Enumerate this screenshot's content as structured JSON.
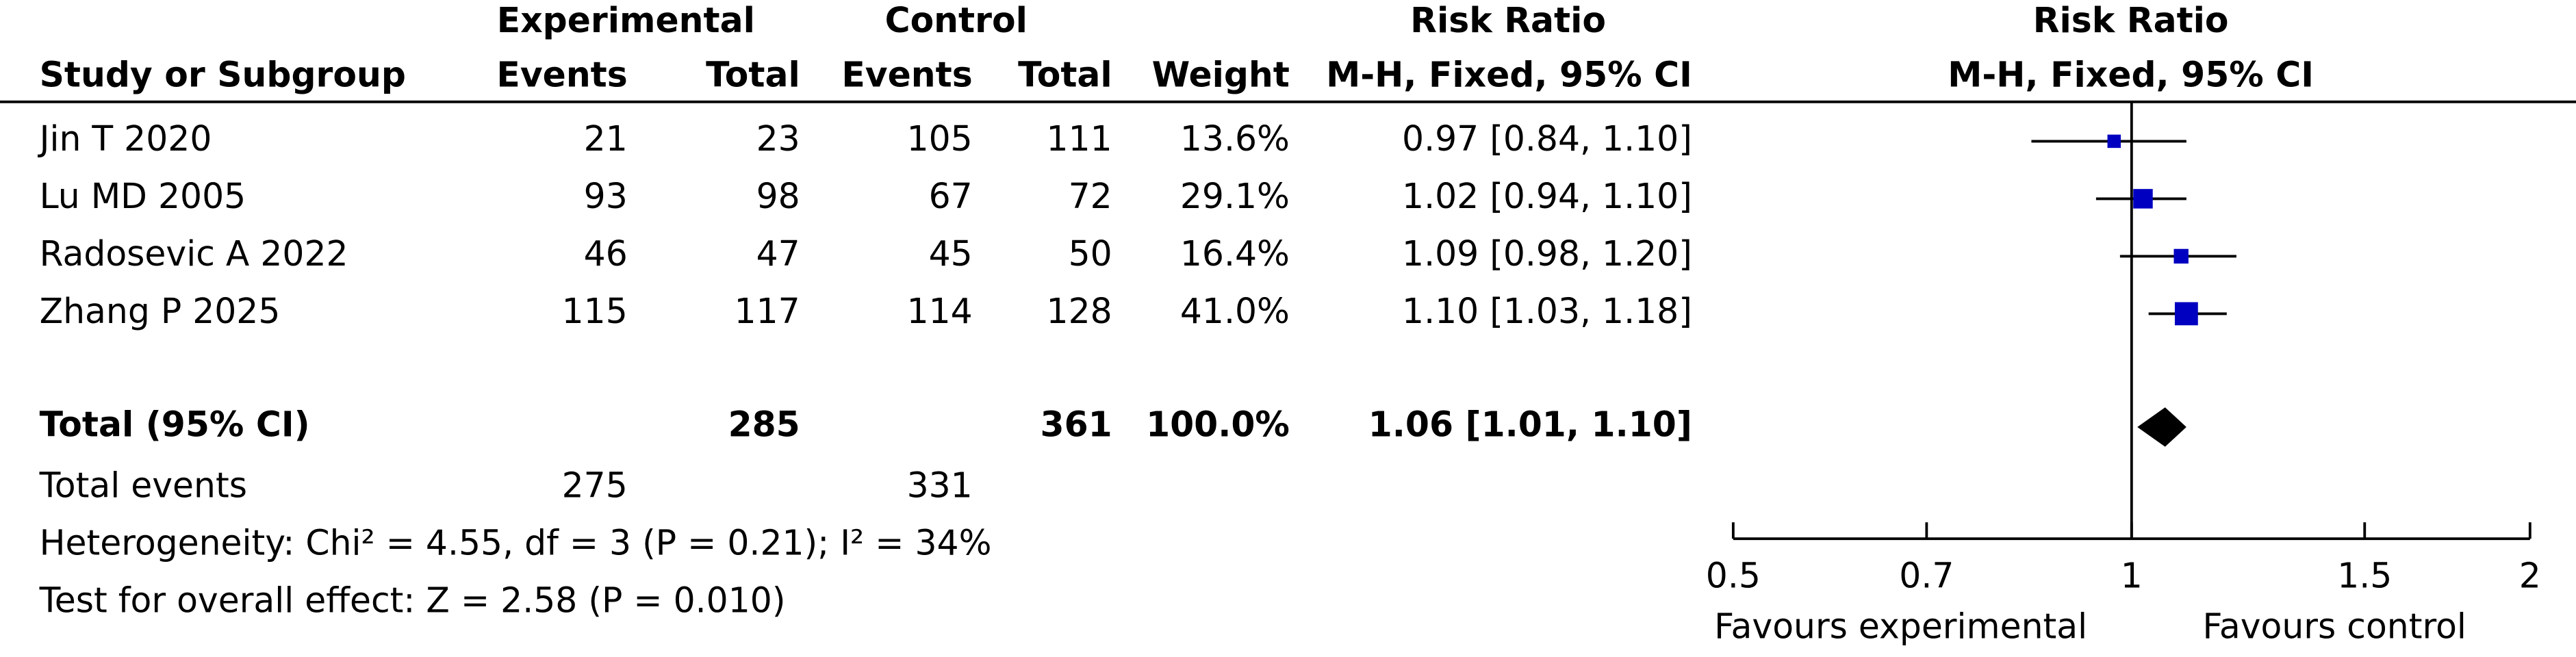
{
  "chart_data": {
    "type": "forest",
    "headers": {
      "experimental": "Experimental",
      "control": "Control",
      "table_effect": "Risk Ratio",
      "plot_effect": "Risk Ratio",
      "study": "Study or Subgroup",
      "exp_events": "Events",
      "exp_total": "Total",
      "ctrl_events": "Events",
      "ctrl_total": "Total",
      "weight": "Weight",
      "table_method": "M-H, Fixed, 95% CI",
      "plot_method": "M-H, Fixed, 95% CI"
    },
    "studies": [
      {
        "name": "Jin T 2020",
        "exp_events": 21,
        "exp_total": 23,
        "ctrl_events": 105,
        "ctrl_total": 111,
        "weight": 13.6,
        "weight_label": "13.6%",
        "rr": 0.97,
        "lower": 0.84,
        "upper": 1.1,
        "ci_label": "0.97 [0.84, 1.10]"
      },
      {
        "name": "Lu MD 2005",
        "exp_events": 93,
        "exp_total": 98,
        "ctrl_events": 67,
        "ctrl_total": 72,
        "weight": 29.1,
        "weight_label": "29.1%",
        "rr": 1.02,
        "lower": 0.94,
        "upper": 1.1,
        "ci_label": "1.02 [0.94, 1.10]"
      },
      {
        "name": "Radosevic A 2022",
        "exp_events": 46,
        "exp_total": 47,
        "ctrl_events": 45,
        "ctrl_total": 50,
        "weight": 16.4,
        "weight_label": "16.4%",
        "rr": 1.09,
        "lower": 0.98,
        "upper": 1.2,
        "ci_label": "1.09 [0.98, 1.20]"
      },
      {
        "name": "Zhang P 2025",
        "exp_events": 115,
        "exp_total": 117,
        "ctrl_events": 114,
        "ctrl_total": 128,
        "weight": 41.0,
        "weight_label": "41.0%",
        "rr": 1.1,
        "lower": 1.03,
        "upper": 1.18,
        "ci_label": "1.10 [1.03, 1.18]"
      }
    ],
    "total": {
      "name": "Total (95% CI)",
      "exp_total": 285,
      "ctrl_total": 361,
      "weight": 100.0,
      "weight_label": "100.0%",
      "rr": 1.06,
      "lower": 1.01,
      "upper": 1.1,
      "ci_label": "1.06 [1.01, 1.10]"
    },
    "total_events": {
      "name": "Total events",
      "exp_events": 275,
      "ctrl_events": 331
    },
    "heterogeneity": "Heterogeneity: Chi² = 4.55, df = 3 (P = 0.21); I² = 34%",
    "overall_effect": "Test for overall effect: Z = 2.58 (P = 0.010)",
    "log_scale": true,
    "xlim": [
      0.5,
      2
    ],
    "xticks": [
      0.5,
      0.7,
      1,
      1.5,
      2
    ],
    "favours_left": "Favours experimental",
    "favours_right": "Favours control",
    "square_color": "#0000c0",
    "diamond_color": "#000000"
  }
}
